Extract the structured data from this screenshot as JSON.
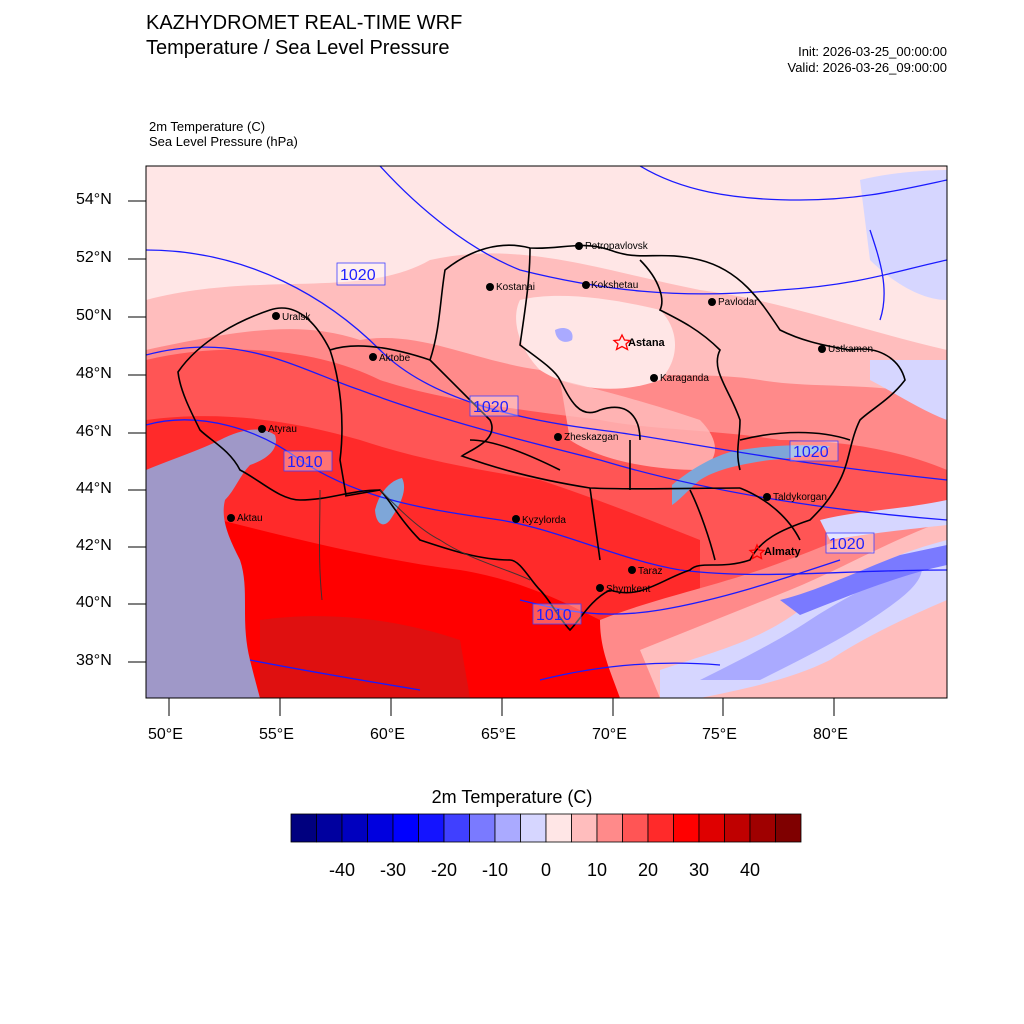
{
  "header": {
    "title_line1": "KAZHYDROMET REAL-TIME WRF",
    "title_line2": "Temperature / Sea Level Pressure",
    "init": "Init: 2026-03-25_00:00:00",
    "valid": "Valid: 2026-03-26_09:00:00",
    "field1": "2m Temperature   (C)",
    "field2": "Sea Level Pressure   (hPa)"
  },
  "axes": {
    "lat_labels": [
      "54°N",
      "52°N",
      "50°N",
      "48°N",
      "46°N",
      "44°N",
      "42°N",
      "40°N",
      "38°N"
    ],
    "lon_labels": [
      "50°E",
      "55°E",
      "60°E",
      "65°E",
      "70°E",
      "75°E",
      "80°E"
    ]
  },
  "cities": [
    {
      "name": "Petropavlovsk",
      "bold": false
    },
    {
      "name": "Kostanai",
      "bold": false
    },
    {
      "name": "Kokshetau",
      "bold": false
    },
    {
      "name": "Pavlodar",
      "bold": false
    },
    {
      "name": "Uralsk",
      "bold": false
    },
    {
      "name": "Astana",
      "bold": true
    },
    {
      "name": "Aktobe",
      "bold": false
    },
    {
      "name": "Ustkamen",
      "bold": false
    },
    {
      "name": "Karaganda",
      "bold": false
    },
    {
      "name": "Atyrau",
      "bold": false
    },
    {
      "name": "Zheskazgan",
      "bold": false
    },
    {
      "name": "Taldykorgan",
      "bold": false
    },
    {
      "name": "Aktau",
      "bold": false
    },
    {
      "name": "Kyzylorda",
      "bold": false
    },
    {
      "name": "Almaty",
      "bold": true
    },
    {
      "name": "Taraz",
      "bold": false
    },
    {
      "name": "Shymkent",
      "bold": false
    }
  ],
  "isobar_labels": [
    "1020",
    "1020",
    "1010",
    "1020",
    "1020",
    "1010"
  ],
  "colorbar": {
    "title": "2m Temperature  (C)",
    "labels": [
      "-40",
      "-30",
      "-20",
      "-10",
      "0",
      "10",
      "20",
      "30",
      "40"
    ],
    "colors": [
      "#00007f",
      "#00009f",
      "#0000bf",
      "#0000df",
      "#0000ff",
      "#1414ff",
      "#4040ff",
      "#7a7aff",
      "#aaaaff",
      "#d6d6ff",
      "#ffe6e6",
      "#ffbdbd",
      "#ff8a8a",
      "#ff5555",
      "#ff2a2a",
      "#ff0000",
      "#df0000",
      "#bf0000",
      "#9f0000",
      "#7f0000"
    ]
  }
}
